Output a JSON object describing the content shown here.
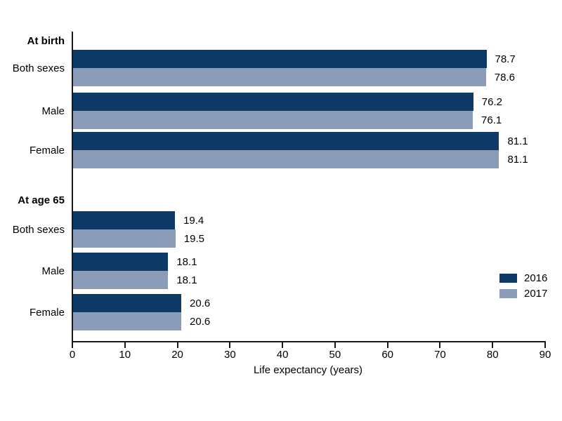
{
  "chart_data": {
    "type": "bar",
    "orientation": "horizontal",
    "title": "",
    "xlabel": "Life expectancy (years)",
    "ylabel": "",
    "xlim": [
      0,
      90
    ],
    "xticks": [
      0,
      10,
      20,
      30,
      40,
      50,
      60,
      70,
      80,
      90
    ],
    "grid": false,
    "axis_color": "#1a1a1a",
    "text_color": "#000000",
    "series": [
      {
        "name": "2016",
        "color": "#0e3a68"
      },
      {
        "name": "2017",
        "color": "#8a9cb8"
      }
    ],
    "groups": [
      {
        "label": "At birth",
        "items": [
          {
            "category": "Both sexes",
            "values": [
              78.7,
              78.6
            ],
            "value_labels": [
              "78.7",
              "78.6"
            ]
          },
          {
            "category": "Male",
            "values": [
              76.2,
              76.1
            ],
            "value_labels": [
              "76.2",
              "76.1"
            ]
          },
          {
            "category": "Female",
            "values": [
              81.1,
              81.1
            ],
            "value_labels": [
              "81.1",
              "81.1"
            ]
          }
        ]
      },
      {
        "label": "At age 65",
        "items": [
          {
            "category": "Both sexes",
            "values": [
              19.4,
              19.5
            ],
            "value_labels": [
              "19.4",
              "19.5"
            ]
          },
          {
            "category": "Male",
            "values": [
              18.1,
              18.1
            ],
            "value_labels": [
              "18.1",
              "18.1"
            ]
          },
          {
            "category": "Female",
            "values": [
              20.6,
              20.6
            ],
            "value_labels": [
              "20.6",
              "20.6"
            ]
          }
        ]
      }
    ],
    "legend": {
      "entries": [
        "2016",
        "2017"
      ],
      "position": "right-middle"
    }
  }
}
